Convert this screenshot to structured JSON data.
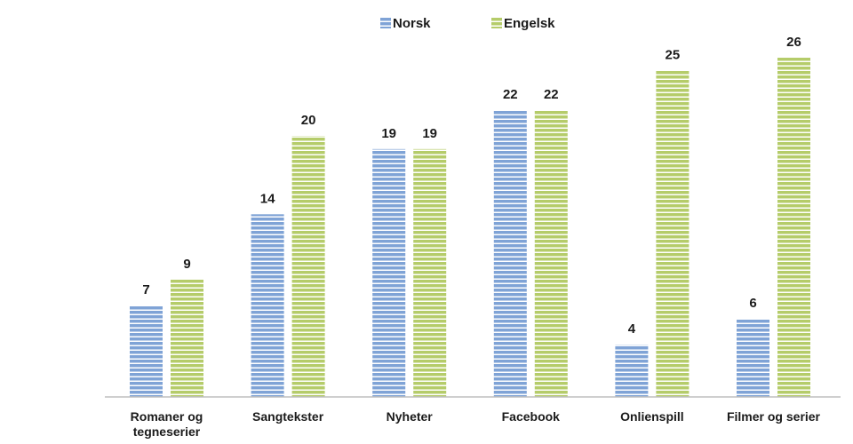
{
  "chart_data": {
    "type": "bar",
    "categories": [
      [
        "Romaner og",
        "tegneserier"
      ],
      [
        "Sangtekster"
      ],
      [
        "Nyheter"
      ],
      [
        "Facebook"
      ],
      [
        "Onlienspill"
      ],
      [
        "Filmer og serier"
      ]
    ],
    "series": [
      {
        "name": "Norsk",
        "color": "#7fa3d6",
        "values": [
          7,
          14,
          19,
          22,
          4,
          6
        ]
      },
      {
        "name": "Engelsk",
        "color": "#b5cc6a",
        "values": [
          9,
          20,
          19,
          22,
          25,
          26
        ]
      }
    ],
    "ylim": [
      0,
      26
    ],
    "grid": false,
    "legend": "top-center",
    "title": "",
    "xlabel": "",
    "ylabel": ""
  }
}
